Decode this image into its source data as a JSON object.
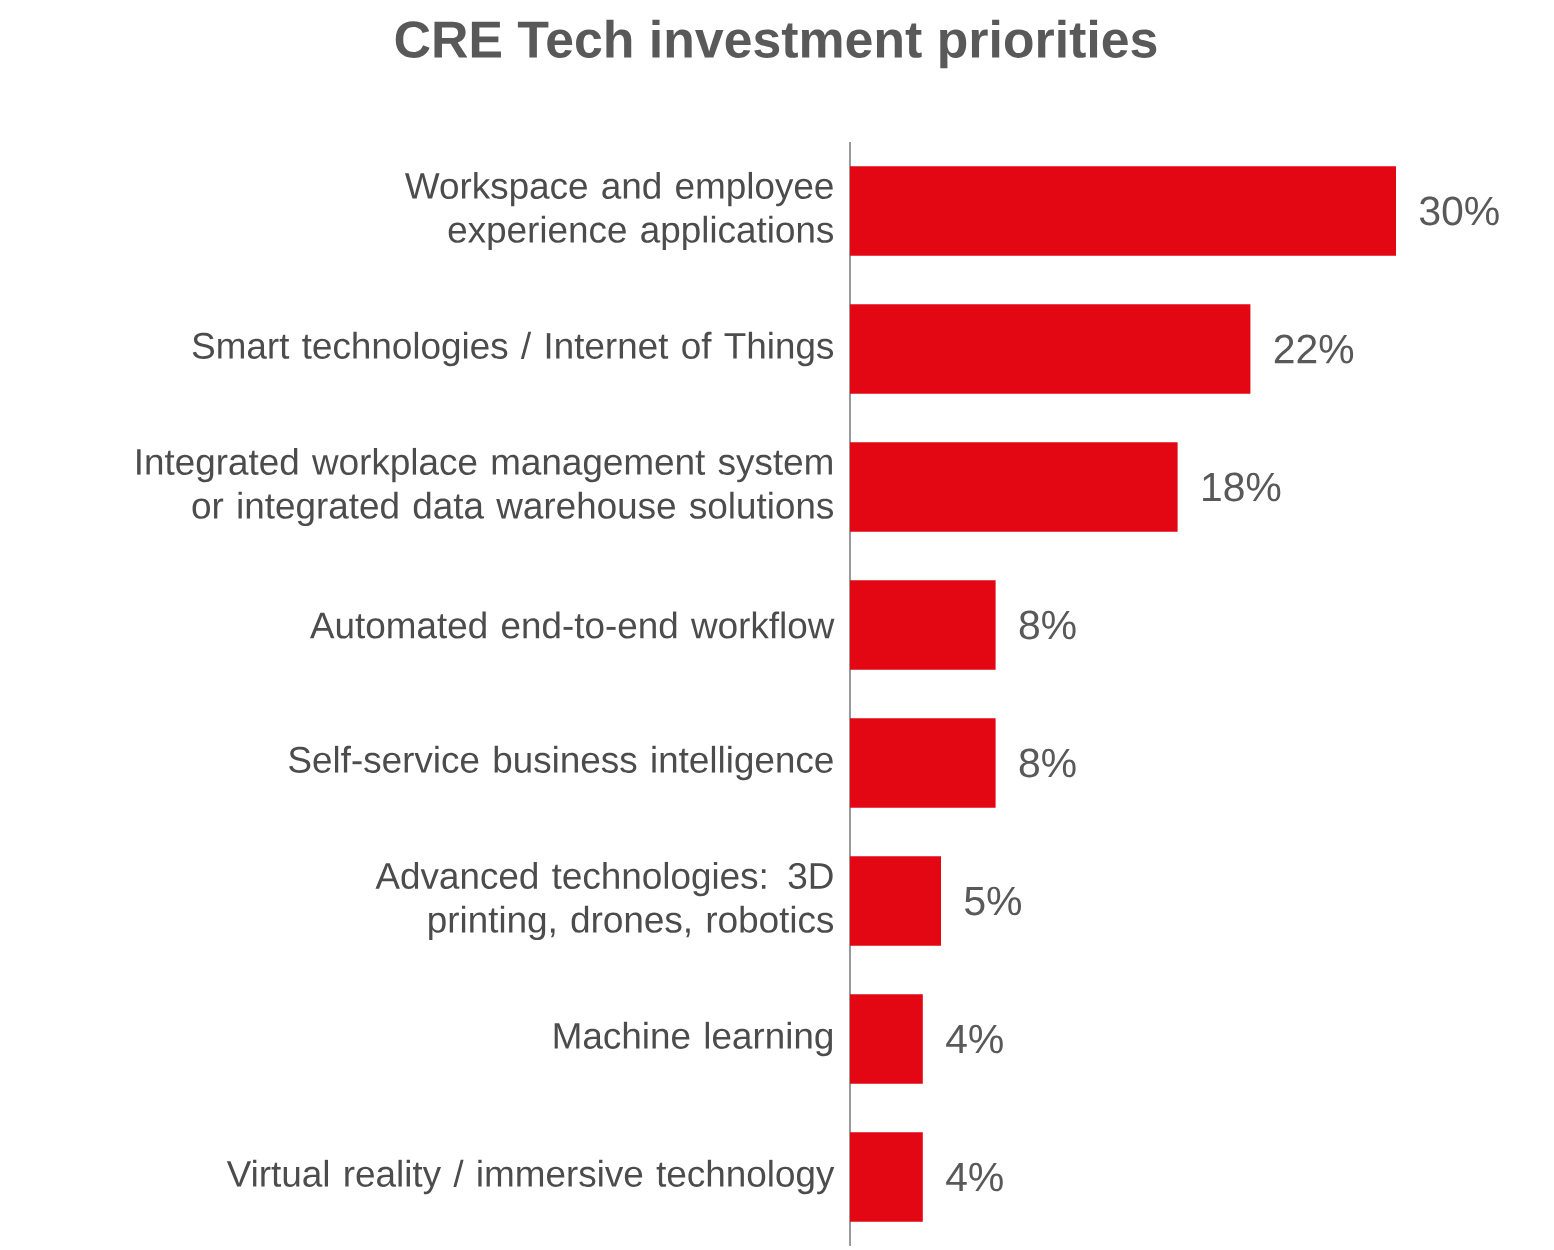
{
  "chart_data": {
    "type": "bar",
    "orientation": "horizontal",
    "title": "CRE Tech investment priorities",
    "categories": [
      "Workspace and employee experience applications",
      "Smart technologies / Internet of Things",
      "Integrated workplace management system or integrated data warehouse solutions",
      "Automated end-to-end workflow",
      "Self-service business intelligence",
      "Advanced technologies: 3D printing, drones, robotics",
      "Machine learning",
      "Virtual reality / immersive technology"
    ],
    "values": [
      30,
      22,
      18,
      8,
      8,
      5,
      4,
      4
    ],
    "value_labels": [
      "30%",
      "22%",
      "18%",
      "8%",
      "8%",
      "5%",
      "4%",
      "4%"
    ],
    "color": "#e30613"
  }
}
